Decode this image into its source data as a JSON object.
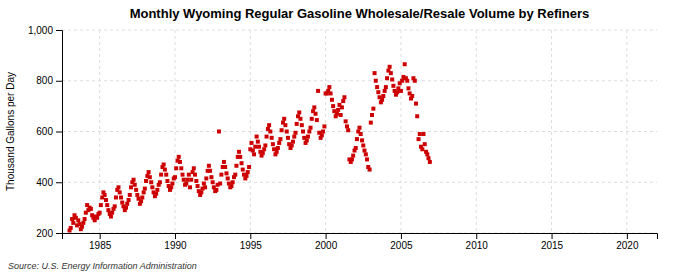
{
  "chart_data": {
    "type": "scatter",
    "title": "Monthly Wyoming Regular Gasoline Wholesale/Resale Volume by Refiners",
    "y_label": "Thousand Gallons per Day",
    "source": "Source: U.S. Energy Information Administration",
    "color": "#cc0000",
    "marker": "square",
    "grid": true,
    "xlim": [
      1982.5,
      2022
    ],
    "ylim": [
      200,
      1000
    ],
    "xticks": [
      1985,
      1990,
      1995,
      2000,
      2005,
      2010,
      2015,
      2020
    ],
    "yticks": [
      200,
      400,
      600,
      800,
      {
        "value": 1000,
        "label": "1,000"
      }
    ],
    "x": [
      1983.0,
      1983.08,
      1983.17,
      1983.25,
      1983.33,
      1983.42,
      1983.5,
      1983.58,
      1983.67,
      1983.75,
      1983.83,
      1983.92,
      1984.0,
      1984.08,
      1984.17,
      1984.25,
      1984.33,
      1984.42,
      1984.5,
      1984.58,
      1984.67,
      1984.75,
      1984.83,
      1984.92,
      1985.0,
      1985.08,
      1985.17,
      1985.25,
      1985.33,
      1985.42,
      1985.5,
      1985.58,
      1985.67,
      1985.75,
      1985.83,
      1985.92,
      1986.0,
      1986.08,
      1986.17,
      1986.25,
      1986.33,
      1986.42,
      1986.5,
      1986.58,
      1986.67,
      1986.75,
      1986.83,
      1986.92,
      1987.0,
      1987.08,
      1987.17,
      1987.25,
      1987.33,
      1987.42,
      1987.5,
      1987.58,
      1987.67,
      1987.75,
      1987.83,
      1987.92,
      1988.0,
      1988.08,
      1988.17,
      1988.25,
      1988.33,
      1988.42,
      1988.5,
      1988.58,
      1988.67,
      1988.75,
      1988.83,
      1988.92,
      1989.0,
      1989.08,
      1989.17,
      1989.25,
      1989.33,
      1989.42,
      1989.5,
      1989.58,
      1989.67,
      1989.75,
      1989.83,
      1989.92,
      1990.0,
      1990.08,
      1990.17,
      1990.25,
      1990.33,
      1990.42,
      1990.5,
      1990.58,
      1990.67,
      1990.75,
      1990.83,
      1990.92,
      1991.0,
      1991.08,
      1991.17,
      1991.25,
      1991.33,
      1991.42,
      1991.5,
      1991.58,
      1991.67,
      1991.75,
      1991.83,
      1991.92,
      1992.0,
      1992.08,
      1992.17,
      1992.25,
      1992.33,
      1992.42,
      1992.5,
      1992.58,
      1992.67,
      1992.75,
      1992.83,
      1992.92,
      1993.0,
      1993.08,
      1993.17,
      1993.25,
      1993.33,
      1993.42,
      1993.5,
      1993.58,
      1993.67,
      1993.75,
      1993.83,
      1993.92,
      1994.0,
      1994.08,
      1994.17,
      1994.25,
      1994.33,
      1994.42,
      1994.5,
      1994.58,
      1994.67,
      1994.75,
      1994.83,
      1994.92,
      1995.0,
      1995.08,
      1995.17,
      1995.25,
      1995.33,
      1995.42,
      1995.5,
      1995.58,
      1995.67,
      1995.75,
      1995.83,
      1995.92,
      1996.0,
      1996.08,
      1996.17,
      1996.25,
      1996.33,
      1996.42,
      1996.5,
      1996.58,
      1996.67,
      1996.75,
      1996.83,
      1996.92,
      1997.0,
      1997.08,
      1997.17,
      1997.25,
      1997.33,
      1997.42,
      1997.5,
      1997.58,
      1997.67,
      1997.75,
      1997.83,
      1997.92,
      1998.0,
      1998.08,
      1998.17,
      1998.25,
      1998.33,
      1998.42,
      1998.5,
      1998.58,
      1998.67,
      1998.75,
      1998.83,
      1998.92,
      1999.0,
      1999.08,
      1999.17,
      1999.25,
      1999.33,
      1999.42,
      1999.5,
      1999.58,
      1999.67,
      1999.75,
      1999.83,
      1999.92,
      2000.0,
      2000.08,
      2000.17,
      2000.25,
      2000.33,
      2000.42,
      2000.5,
      2000.58,
      2000.67,
      2000.75,
      2000.83,
      2000.92,
      2001.0,
      2001.08,
      2001.17,
      2001.25,
      2001.33,
      2001.42,
      2001.5,
      2001.58,
      2001.67,
      2001.75,
      2001.83,
      2001.92,
      2002.0,
      2002.08,
      2002.17,
      2002.25,
      2002.33,
      2002.42,
      2002.5,
      2002.58,
      2002.67,
      2002.75,
      2002.83,
      2002.92,
      2003.0,
      2003.08,
      2003.17,
      2003.25,
      2003.33,
      2003.42,
      2003.5,
      2003.58,
      2003.67,
      2003.75,
      2003.83,
      2003.92,
      2004.0,
      2004.08,
      2004.17,
      2004.25,
      2004.33,
      2004.42,
      2004.5,
      2004.58,
      2004.67,
      2004.75,
      2004.83,
      2004.92,
      2005.0,
      2005.08,
      2005.17,
      2005.25,
      2005.33,
      2005.42,
      2005.5,
      2005.58,
      2005.67,
      2005.75,
      2005.83,
      2005.92,
      2006.0,
      2006.08,
      2006.17,
      2006.25,
      2006.33,
      2006.42,
      2006.5,
      2006.58,
      2006.67,
      2006.75,
      2006.83,
      2006.92
    ],
    "values": [
      210,
      220,
      255,
      240,
      270,
      260,
      230,
      250,
      235,
      215,
      225,
      240,
      255,
      280,
      310,
      290,
      300,
      295,
      270,
      260,
      250,
      265,
      260,
      275,
      280,
      310,
      340,
      360,
      350,
      330,
      310,
      290,
      275,
      265,
      280,
      295,
      305,
      340,
      370,
      380,
      360,
      340,
      320,
      305,
      290,
      300,
      315,
      330,
      350,
      380,
      400,
      410,
      390,
      370,
      350,
      335,
      315,
      325,
      340,
      360,
      375,
      405,
      425,
      440,
      420,
      400,
      380,
      360,
      345,
      355,
      370,
      390,
      400,
      430,
      460,
      470,
      450,
      430,
      405,
      385,
      370,
      380,
      395,
      415,
      420,
      455,
      485,
      500,
      480,
      455,
      430,
      410,
      390,
      395,
      410,
      430,
      380,
      410,
      440,
      455,
      430,
      405,
      385,
      365,
      350,
      360,
      375,
      395,
      380,
      415,
      445,
      465,
      445,
      420,
      400,
      380,
      365,
      370,
      390,
      600,
      395,
      430,
      460,
      480,
      460,
      435,
      415,
      395,
      380,
      385,
      400,
      420,
      430,
      465,
      500,
      520,
      500,
      475,
      450,
      430,
      415,
      425,
      440,
      460,
      530,
      555,
      525,
      510,
      540,
      580,
      560,
      540,
      520,
      505,
      515,
      530,
      545,
      580,
      610,
      625,
      600,
      575,
      550,
      530,
      510,
      520,
      535,
      555,
      570,
      605,
      635,
      650,
      625,
      600,
      575,
      550,
      535,
      545,
      560,
      580,
      595,
      630,
      660,
      675,
      650,
      625,
      600,
      575,
      555,
      565,
      580,
      600,
      615,
      650,
      680,
      695,
      670,
      645,
      760,
      595,
      575,
      585,
      600,
      620,
      750,
      750,
      760,
      775,
      750,
      725,
      700,
      680,
      660,
      670,
      685,
      705,
      665,
      695,
      720,
      735,
      640,
      620,
      605,
      490,
      480,
      490,
      505,
      525,
      535,
      570,
      600,
      615,
      590,
      565,
      545,
      525,
      510,
      490,
      460,
      450,
      635,
      665,
      690,
      830,
      800,
      775,
      755,
      735,
      715,
      725,
      740,
      760,
      775,
      810,
      840,
      855,
      830,
      805,
      780,
      760,
      745,
      755,
      770,
      790,
      760,
      800,
      815,
      865,
      810,
      800,
      770,
      750,
      730,
      740,
      810,
      800,
      710,
      660,
      570,
      590,
      540,
      530,
      590,
      550,
      520,
      510,
      495,
      480
    ]
  }
}
